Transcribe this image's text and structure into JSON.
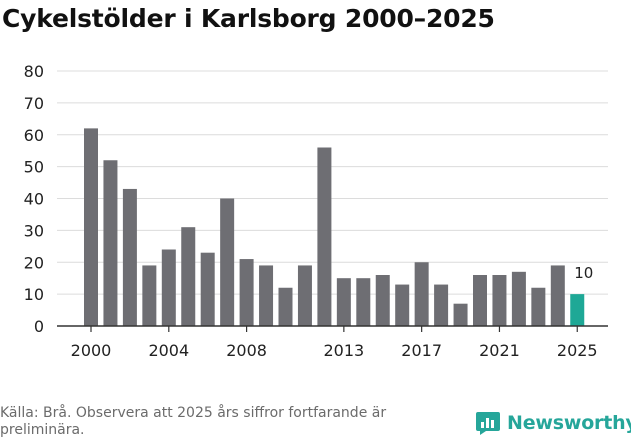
{
  "title": "Cykelstölder i Karlsborg 2000–2025",
  "source": "Källa: Brå. Observera att 2025 års siffror fortfarande är preliminära.",
  "brand": {
    "name": "Newsworthy",
    "icon": "newsworthy-logo-icon",
    "color": "#26a69a"
  },
  "colors": {
    "bar": "#6e6e73",
    "highlight": "#1ea896",
    "grid": "#dcdcdc",
    "axis": "#333333"
  },
  "chart_data": {
    "type": "bar",
    "title": "Cykelstölder i Karlsborg 2000–2025",
    "xlabel": "",
    "ylabel": "",
    "ylim": [
      0,
      80
    ],
    "yticks": [
      0,
      10,
      20,
      30,
      40,
      50,
      60,
      70,
      80
    ],
    "grid": true,
    "categories": [
      "2000",
      "2001",
      "2002",
      "2003",
      "2004",
      "2005",
      "2006",
      "2007",
      "2008",
      "2009",
      "2010",
      "2011",
      "2012",
      "2013",
      "2014",
      "2015",
      "2016",
      "2017",
      "2018",
      "2019",
      "2020",
      "2021",
      "2022",
      "2023",
      "2024",
      "2025"
    ],
    "values": [
      62,
      52,
      43,
      19,
      24,
      31,
      23,
      40,
      21,
      19,
      12,
      19,
      56,
      15,
      15,
      16,
      13,
      20,
      13,
      7,
      16,
      16,
      17,
      12,
      19,
      10
    ],
    "xtick_labels": [
      "2000",
      "2004",
      "2008",
      "2013",
      "2017",
      "2021",
      "2025"
    ],
    "highlight": {
      "category": "2025",
      "label": "10"
    }
  }
}
